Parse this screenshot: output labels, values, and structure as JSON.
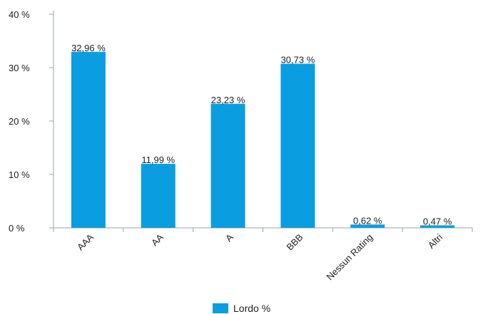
{
  "chart_data": {
    "type": "bar",
    "categories": [
      "AAA",
      "AA",
      "A",
      "BBB",
      "Nessun Rating",
      "Altri"
    ],
    "series": [
      {
        "name": "Lordo %",
        "values": [
          32.96,
          11.99,
          23.23,
          30.73,
          0.62,
          0.47
        ],
        "labels": [
          "32,96 %",
          "11,99 %",
          "23,23 %",
          "30,73 %",
          "0,62 %",
          "0,47 %"
        ],
        "color": "#0a9ee0"
      }
    ],
    "ylim": [
      0,
      40
    ],
    "yticks": [
      0,
      10,
      20,
      30,
      40
    ],
    "ytick_labels": [
      "0 %",
      "10 %",
      "20 %",
      "30 %",
      "40 %"
    ],
    "title": "",
    "xlabel": "",
    "ylabel": "",
    "grid": false,
    "legend_position": "bottom-center"
  }
}
